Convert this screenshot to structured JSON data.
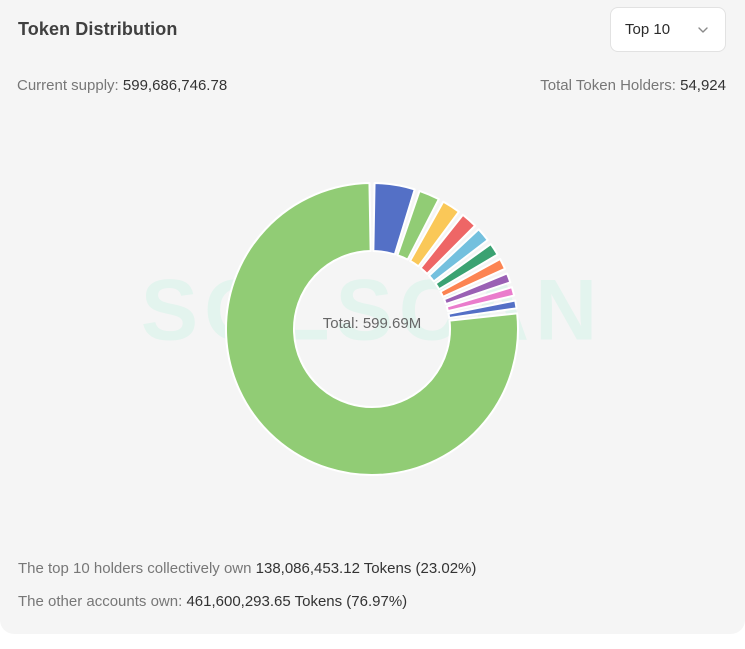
{
  "header": {
    "title": "Token Distribution",
    "select_value": "Top 10"
  },
  "stats": {
    "supply_label": "Current supply: ",
    "supply_value": "599,686,746.78",
    "holders_label": "Total Token Holders: ",
    "holders_value": "54,924"
  },
  "summary": {
    "top_prefix": "The top 10 holders collectively own ",
    "top_value": "138,086,453.12 Tokens (23.02%)",
    "other_prefix": "The other accounts own: ",
    "other_value": "461,600,293.65 Tokens (76.97%)"
  },
  "watermark": "SOLSCAN",
  "chart_data": {
    "type": "pie",
    "donut": true,
    "center_label": "Total: 599.69M",
    "slices": [
      {
        "value": 461.6,
        "color": "#91cc75"
      },
      {
        "value": 30.0,
        "color": "#5470c6"
      },
      {
        "value": 17.0,
        "color": "#91cc75"
      },
      {
        "value": 15.5,
        "color": "#fac858"
      },
      {
        "value": 14.0,
        "color": "#ee6666"
      },
      {
        "value": 12.5,
        "color": "#73c0de"
      },
      {
        "value": 11.5,
        "color": "#3ba272"
      },
      {
        "value": 10.5,
        "color": "#fc8452"
      },
      {
        "value": 9.5,
        "color": "#9a60b4"
      },
      {
        "value": 9.0,
        "color": "#ea7ccc"
      },
      {
        "value": 8.5,
        "color": "#5470c6"
      }
    ]
  }
}
